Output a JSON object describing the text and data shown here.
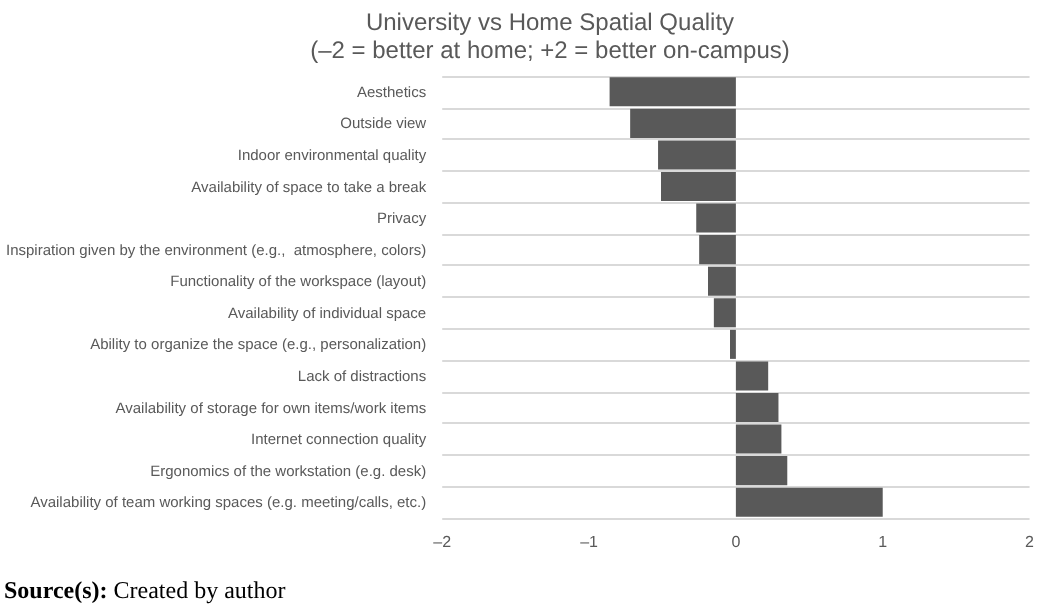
{
  "chart_data": {
    "type": "bar",
    "orientation": "horizontal",
    "title": "University vs Home Spatial Quality",
    "subtitle": "(–2 = better at home; +2 = better on-campus)",
    "categories": [
      "Aesthetics",
      "Outside view",
      "Indoor environmental quality",
      "Availability of space to take a break",
      "Privacy",
      "Inspiration given by the environment (e.g.,  atmosphere, colors)",
      "Functionality of the workspace (layout)",
      "Availability of individual space",
      "Ability to organize the space (e.g., personalization)",
      "Lack of distractions",
      "Availability of storage for own items/work items",
      "Internet connection quality",
      "Ergonomics of the workstation (e.g. desk)",
      "Availability of team working spaces (e.g. meeting/calls, etc.)"
    ],
    "values": [
      -0.86,
      -0.72,
      -0.53,
      -0.51,
      -0.27,
      -0.25,
      -0.19,
      -0.15,
      -0.04,
      0.22,
      0.29,
      0.31,
      0.35,
      1.0
    ],
    "color": "#595959",
    "xlim": [
      -2,
      2
    ],
    "xticks": [
      {
        "value": -2,
        "label": "–2"
      },
      {
        "value": -1,
        "label": "–1"
      },
      0,
      1,
      2
    ],
    "grid": "y",
    "annotations": [
      "Source(s): Created by author"
    ]
  }
}
